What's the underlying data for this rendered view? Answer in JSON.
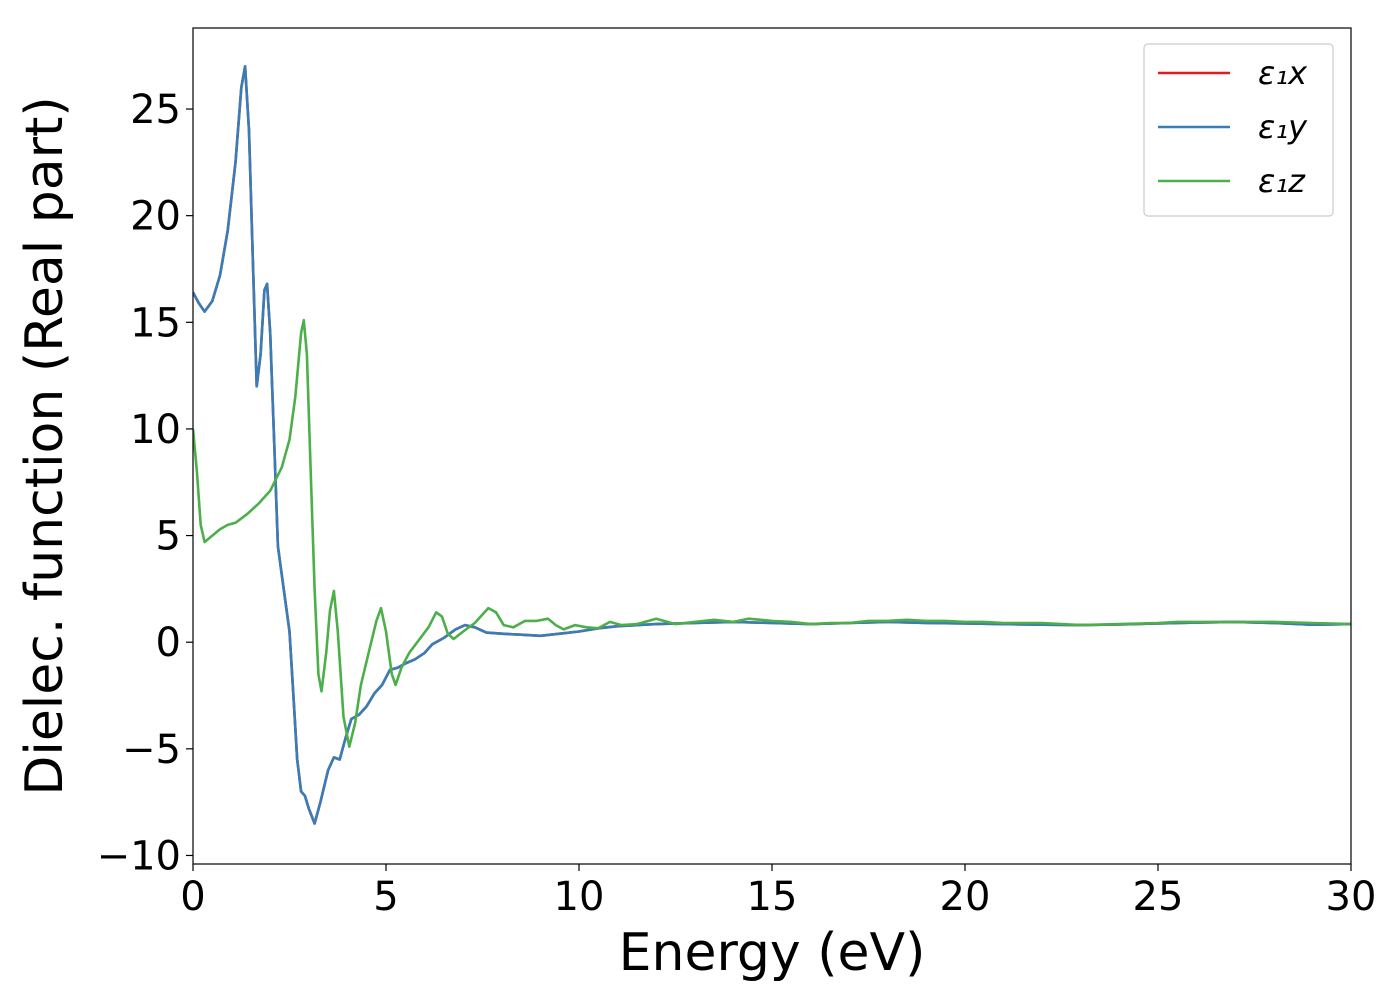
{
  "chart_data": {
    "type": "line",
    "title": "",
    "xlabel": "Energy (eV)",
    "ylabel": "Dielec. function (Real part)",
    "xlim": [
      0,
      30
    ],
    "ylim": [
      -10.4,
      28.8
    ],
    "xticks": [
      0,
      5,
      10,
      15,
      20,
      25,
      30
    ],
    "yticks": [
      -10,
      -5,
      0,
      5,
      10,
      15,
      20,
      25
    ],
    "xtick_labels": [
      "0",
      "5",
      "10",
      "15",
      "20",
      "25",
      "30"
    ],
    "ytick_labels": [
      "−10",
      "−5",
      "0",
      "5",
      "10",
      "15",
      "20",
      "25"
    ],
    "grid": false,
    "legend_position": "top-right",
    "series": [
      {
        "name": "ε₁x",
        "color": "#e41a1c",
        "points": [
          [
            0,
            16.4
          ],
          [
            0.15,
            15.9
          ],
          [
            0.3,
            15.5
          ],
          [
            0.5,
            16.0
          ],
          [
            0.7,
            17.2
          ],
          [
            0.9,
            19.3
          ],
          [
            1.1,
            22.5
          ],
          [
            1.25,
            26.0
          ],
          [
            1.35,
            27.0
          ],
          [
            1.45,
            24.0
          ],
          [
            1.55,
            18.0
          ],
          [
            1.65,
            12.0
          ],
          [
            1.75,
            13.5
          ],
          [
            1.85,
            16.5
          ],
          [
            1.92,
            16.8
          ],
          [
            2.0,
            14.5
          ],
          [
            2.1,
            9.5
          ],
          [
            2.2,
            4.5
          ],
          [
            2.35,
            2.5
          ],
          [
            2.5,
            0.5
          ],
          [
            2.6,
            -2.5
          ],
          [
            2.7,
            -5.5
          ],
          [
            2.8,
            -7.0
          ],
          [
            2.9,
            -7.2
          ],
          [
            3.0,
            -7.8
          ],
          [
            3.15,
            -8.5
          ],
          [
            3.3,
            -7.5
          ],
          [
            3.5,
            -6.0
          ],
          [
            3.65,
            -5.4
          ],
          [
            3.8,
            -5.5
          ],
          [
            3.95,
            -4.5
          ],
          [
            4.1,
            -3.6
          ],
          [
            4.3,
            -3.4
          ],
          [
            4.5,
            -3.0
          ],
          [
            4.7,
            -2.4
          ],
          [
            4.9,
            -2.0
          ],
          [
            5.1,
            -1.3
          ],
          [
            5.3,
            -1.2
          ],
          [
            5.5,
            -1.0
          ],
          [
            5.75,
            -0.8
          ],
          [
            6.0,
            -0.5
          ],
          [
            6.2,
            -0.1
          ],
          [
            6.5,
            0.2
          ],
          [
            6.8,
            0.6
          ],
          [
            7.05,
            0.8
          ],
          [
            7.3,
            0.7
          ],
          [
            7.6,
            0.45
          ],
          [
            8.0,
            0.4
          ],
          [
            8.5,
            0.35
          ],
          [
            9.0,
            0.3
          ],
          [
            9.5,
            0.4
          ],
          [
            10.0,
            0.5
          ],
          [
            10.5,
            0.65
          ],
          [
            11.0,
            0.75
          ],
          [
            12.0,
            0.85
          ],
          [
            13.0,
            0.9
          ],
          [
            14.0,
            0.95
          ],
          [
            15.0,
            0.9
          ],
          [
            16.0,
            0.85
          ],
          [
            17.0,
            0.9
          ],
          [
            18.0,
            0.95
          ],
          [
            19.0,
            0.9
          ],
          [
            20.0,
            0.88
          ],
          [
            21.0,
            0.85
          ],
          [
            22.0,
            0.82
          ],
          [
            23.0,
            0.8
          ],
          [
            24.0,
            0.83
          ],
          [
            25.0,
            0.88
          ],
          [
            26.0,
            0.92
          ],
          [
            27.0,
            0.95
          ],
          [
            28.0,
            0.9
          ],
          [
            29.0,
            0.82
          ],
          [
            30.0,
            0.85
          ]
        ]
      },
      {
        "name": "ε₁y",
        "color": "#377eb8",
        "points": [
          [
            0,
            16.4
          ],
          [
            0.15,
            15.9
          ],
          [
            0.3,
            15.5
          ],
          [
            0.5,
            16.0
          ],
          [
            0.7,
            17.2
          ],
          [
            0.9,
            19.3
          ],
          [
            1.1,
            22.5
          ],
          [
            1.25,
            26.0
          ],
          [
            1.35,
            27.0
          ],
          [
            1.45,
            24.0
          ],
          [
            1.55,
            18.0
          ],
          [
            1.65,
            12.0
          ],
          [
            1.75,
            13.5
          ],
          [
            1.85,
            16.5
          ],
          [
            1.92,
            16.8
          ],
          [
            2.0,
            14.5
          ],
          [
            2.1,
            9.5
          ],
          [
            2.2,
            4.5
          ],
          [
            2.35,
            2.5
          ],
          [
            2.5,
            0.5
          ],
          [
            2.6,
            -2.5
          ],
          [
            2.7,
            -5.5
          ],
          [
            2.8,
            -7.0
          ],
          [
            2.9,
            -7.2
          ],
          [
            3.0,
            -7.8
          ],
          [
            3.15,
            -8.5
          ],
          [
            3.3,
            -7.5
          ],
          [
            3.5,
            -6.0
          ],
          [
            3.65,
            -5.4
          ],
          [
            3.8,
            -5.5
          ],
          [
            3.95,
            -4.5
          ],
          [
            4.1,
            -3.6
          ],
          [
            4.3,
            -3.4
          ],
          [
            4.5,
            -3.0
          ],
          [
            4.7,
            -2.4
          ],
          [
            4.9,
            -2.0
          ],
          [
            5.1,
            -1.3
          ],
          [
            5.3,
            -1.2
          ],
          [
            5.5,
            -1.0
          ],
          [
            5.75,
            -0.8
          ],
          [
            6.0,
            -0.5
          ],
          [
            6.2,
            -0.1
          ],
          [
            6.5,
            0.2
          ],
          [
            6.8,
            0.6
          ],
          [
            7.05,
            0.8
          ],
          [
            7.3,
            0.7
          ],
          [
            7.6,
            0.45
          ],
          [
            8.0,
            0.4
          ],
          [
            8.5,
            0.35
          ],
          [
            9.0,
            0.3
          ],
          [
            9.5,
            0.4
          ],
          [
            10.0,
            0.5
          ],
          [
            10.5,
            0.65
          ],
          [
            11.0,
            0.75
          ],
          [
            12.0,
            0.85
          ],
          [
            13.0,
            0.9
          ],
          [
            14.0,
            0.95
          ],
          [
            15.0,
            0.9
          ],
          [
            16.0,
            0.85
          ],
          [
            17.0,
            0.9
          ],
          [
            18.0,
            0.95
          ],
          [
            19.0,
            0.9
          ],
          [
            20.0,
            0.88
          ],
          [
            21.0,
            0.85
          ],
          [
            22.0,
            0.82
          ],
          [
            23.0,
            0.8
          ],
          [
            24.0,
            0.83
          ],
          [
            25.0,
            0.88
          ],
          [
            26.0,
            0.92
          ],
          [
            27.0,
            0.95
          ],
          [
            28.0,
            0.9
          ],
          [
            29.0,
            0.82
          ],
          [
            30.0,
            0.85
          ]
        ]
      },
      {
        "name": "ε₁z",
        "color": "#4daf4a",
        "points": [
          [
            0,
            10.0
          ],
          [
            0.1,
            8.0
          ],
          [
            0.2,
            5.5
          ],
          [
            0.3,
            4.7
          ],
          [
            0.5,
            5.0
          ],
          [
            0.7,
            5.3
          ],
          [
            0.9,
            5.5
          ],
          [
            1.1,
            5.6
          ],
          [
            1.4,
            6.0
          ],
          [
            1.7,
            6.5
          ],
          [
            2.0,
            7.1
          ],
          [
            2.3,
            8.2
          ],
          [
            2.5,
            9.5
          ],
          [
            2.65,
            11.5
          ],
          [
            2.8,
            14.5
          ],
          [
            2.87,
            15.1
          ],
          [
            2.95,
            13.5
          ],
          [
            3.05,
            8.0
          ],
          [
            3.15,
            2.5
          ],
          [
            3.25,
            -1.5
          ],
          [
            3.33,
            -2.3
          ],
          [
            3.45,
            -0.5
          ],
          [
            3.55,
            1.5
          ],
          [
            3.65,
            2.4
          ],
          [
            3.75,
            0.5
          ],
          [
            3.9,
            -3.5
          ],
          [
            4.05,
            -4.9
          ],
          [
            4.2,
            -3.8
          ],
          [
            4.35,
            -2.0
          ],
          [
            4.55,
            -0.5
          ],
          [
            4.75,
            1.0
          ],
          [
            4.87,
            1.6
          ],
          [
            5.0,
            0.5
          ],
          [
            5.15,
            -1.5
          ],
          [
            5.25,
            -2.0
          ],
          [
            5.4,
            -1.2
          ],
          [
            5.6,
            -0.5
          ],
          [
            5.85,
            0.1
          ],
          [
            6.1,
            0.7
          ],
          [
            6.3,
            1.4
          ],
          [
            6.45,
            1.2
          ],
          [
            6.6,
            0.4
          ],
          [
            6.75,
            0.15
          ],
          [
            7.0,
            0.5
          ],
          [
            7.3,
            0.9
          ],
          [
            7.65,
            1.6
          ],
          [
            7.85,
            1.4
          ],
          [
            8.05,
            0.8
          ],
          [
            8.3,
            0.7
          ],
          [
            8.6,
            1.0
          ],
          [
            8.9,
            1.0
          ],
          [
            9.2,
            1.1
          ],
          [
            9.4,
            0.8
          ],
          [
            9.6,
            0.6
          ],
          [
            9.9,
            0.8
          ],
          [
            10.2,
            0.7
          ],
          [
            10.5,
            0.65
          ],
          [
            10.8,
            0.95
          ],
          [
            11.1,
            0.8
          ],
          [
            11.5,
            0.85
          ],
          [
            12.0,
            1.1
          ],
          [
            12.5,
            0.85
          ],
          [
            13.0,
            0.95
          ],
          [
            13.5,
            1.05
          ],
          [
            14.0,
            0.95
          ],
          [
            14.4,
            1.1
          ],
          [
            15.0,
            1.0
          ],
          [
            15.5,
            0.95
          ],
          [
            16.0,
            0.85
          ],
          [
            16.5,
            0.9
          ],
          [
            17.0,
            0.9
          ],
          [
            17.5,
            1.0
          ],
          [
            18.0,
            1.0
          ],
          [
            18.5,
            1.05
          ],
          [
            19.0,
            1.0
          ],
          [
            19.5,
            1.0
          ],
          [
            20.0,
            0.95
          ],
          [
            20.5,
            0.95
          ],
          [
            21.0,
            0.9
          ],
          [
            22.0,
            0.9
          ],
          [
            23.0,
            0.8
          ],
          [
            24.0,
            0.85
          ],
          [
            25.0,
            0.9
          ],
          [
            25.5,
            0.95
          ],
          [
            26.0,
            0.95
          ],
          [
            27.0,
            0.95
          ],
          [
            28.0,
            0.95
          ],
          [
            29.0,
            0.9
          ],
          [
            30.0,
            0.85
          ]
        ]
      }
    ]
  }
}
